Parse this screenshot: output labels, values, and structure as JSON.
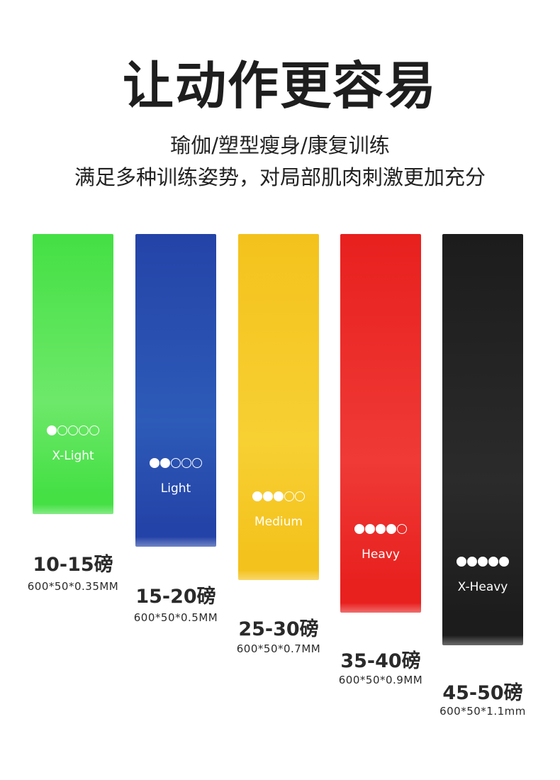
{
  "title": "让动作更容易",
  "subtitle_lines": [
    "瑜伽/塑型瘦身/康复训练",
    "满足多种训练姿势，对局部肌肉刺激更加充分"
  ],
  "bands": [
    {
      "label": "X-Light",
      "level": 1,
      "max_level": 5,
      "weight": "10-15磅",
      "size": "600*50*0.35MM",
      "color_top": "#44e044",
      "color_bottom": "#6ee86a"
    },
    {
      "label": "Light",
      "level": 2,
      "max_level": 5,
      "weight": "15-20磅",
      "size": "600*50*0.5MM",
      "color_top": "#2443a8",
      "color_bottom": "#2d5bb8"
    },
    {
      "label": "Medium",
      "level": 3,
      "max_level": 5,
      "weight": "25-30磅",
      "size": "600*50*0.7MM",
      "color_top": "#f4c21c",
      "color_bottom": "#f7d033"
    },
    {
      "label": "Heavy",
      "level": 4,
      "max_level": 5,
      "weight": "35-40磅",
      "size": "600*50*0.9MM",
      "color_top": "#e8201e",
      "color_bottom": "#ef3a36"
    },
    {
      "label": "X-Heavy",
      "level": 5,
      "max_level": 5,
      "weight": "45-50磅",
      "size": "600*50*1.1mm",
      "color_top": "#1c1c1c",
      "color_bottom": "#2b2b2b"
    }
  ]
}
